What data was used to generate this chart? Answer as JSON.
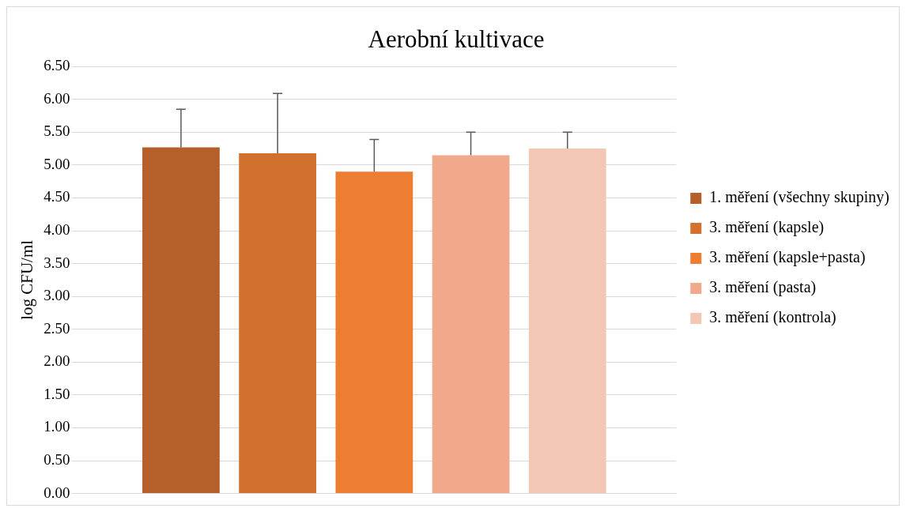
{
  "chart_data": {
    "type": "bar",
    "title": "Aerobní kultivace",
    "ylabel": "log CFU/ml",
    "categories": [
      null
    ],
    "series": [
      {
        "name": "1. měření (všechny skupiny)",
        "color": "#b5602a",
        "values": [
          5.27
        ],
        "errors": [
          [
            5.27,
            5.85
          ]
        ]
      },
      {
        "name": "3. měření (kapsle)",
        "color": "#d2702d",
        "values": [
          5.18
        ],
        "errors": [
          [
            5.18,
            6.09
          ]
        ]
      },
      {
        "name": "3. měření (kapsle+pasta)",
        "color": "#ed7d31",
        "values": [
          4.9
        ],
        "errors": [
          [
            4.9,
            5.39
          ]
        ]
      },
      {
        "name": "3. měření (pasta)",
        "color": "#f0a98a",
        "values": [
          5.15
        ],
        "errors": [
          [
            5.15,
            5.5
          ]
        ]
      },
      {
        "name": "3. měření (kontrola)",
        "color": "#f4c7b5",
        "values": [
          5.25
        ],
        "errors": [
          [
            5.25,
            5.5
          ]
        ]
      }
    ],
    "ylim": [
      0,
      6.5
    ],
    "yticks": [
      {
        "value": 0,
        "label": "0.00"
      },
      {
        "value": 0.5,
        "label": "0.50"
      },
      {
        "value": 1,
        "label": "1.00"
      },
      {
        "value": 1.5,
        "label": "1.50"
      },
      {
        "value": 2,
        "label": "2.00"
      },
      {
        "value": 2.5,
        "label": "2.50"
      },
      {
        "value": 3,
        "label": "3.00"
      },
      {
        "value": 3.5,
        "label": "3.50"
      },
      {
        "value": 4,
        "label": "4.00"
      },
      {
        "value": 4.5,
        "label": "4.50"
      },
      {
        "value": 5,
        "label": "5.00"
      },
      {
        "value": 5.5,
        "label": "5.50"
      },
      {
        "value": 6,
        "label": "6.00"
      },
      {
        "value": 6.5,
        "label": "6.50"
      }
    ],
    "grid": "y",
    "legend": "right",
    "tick_labels": "y"
  }
}
